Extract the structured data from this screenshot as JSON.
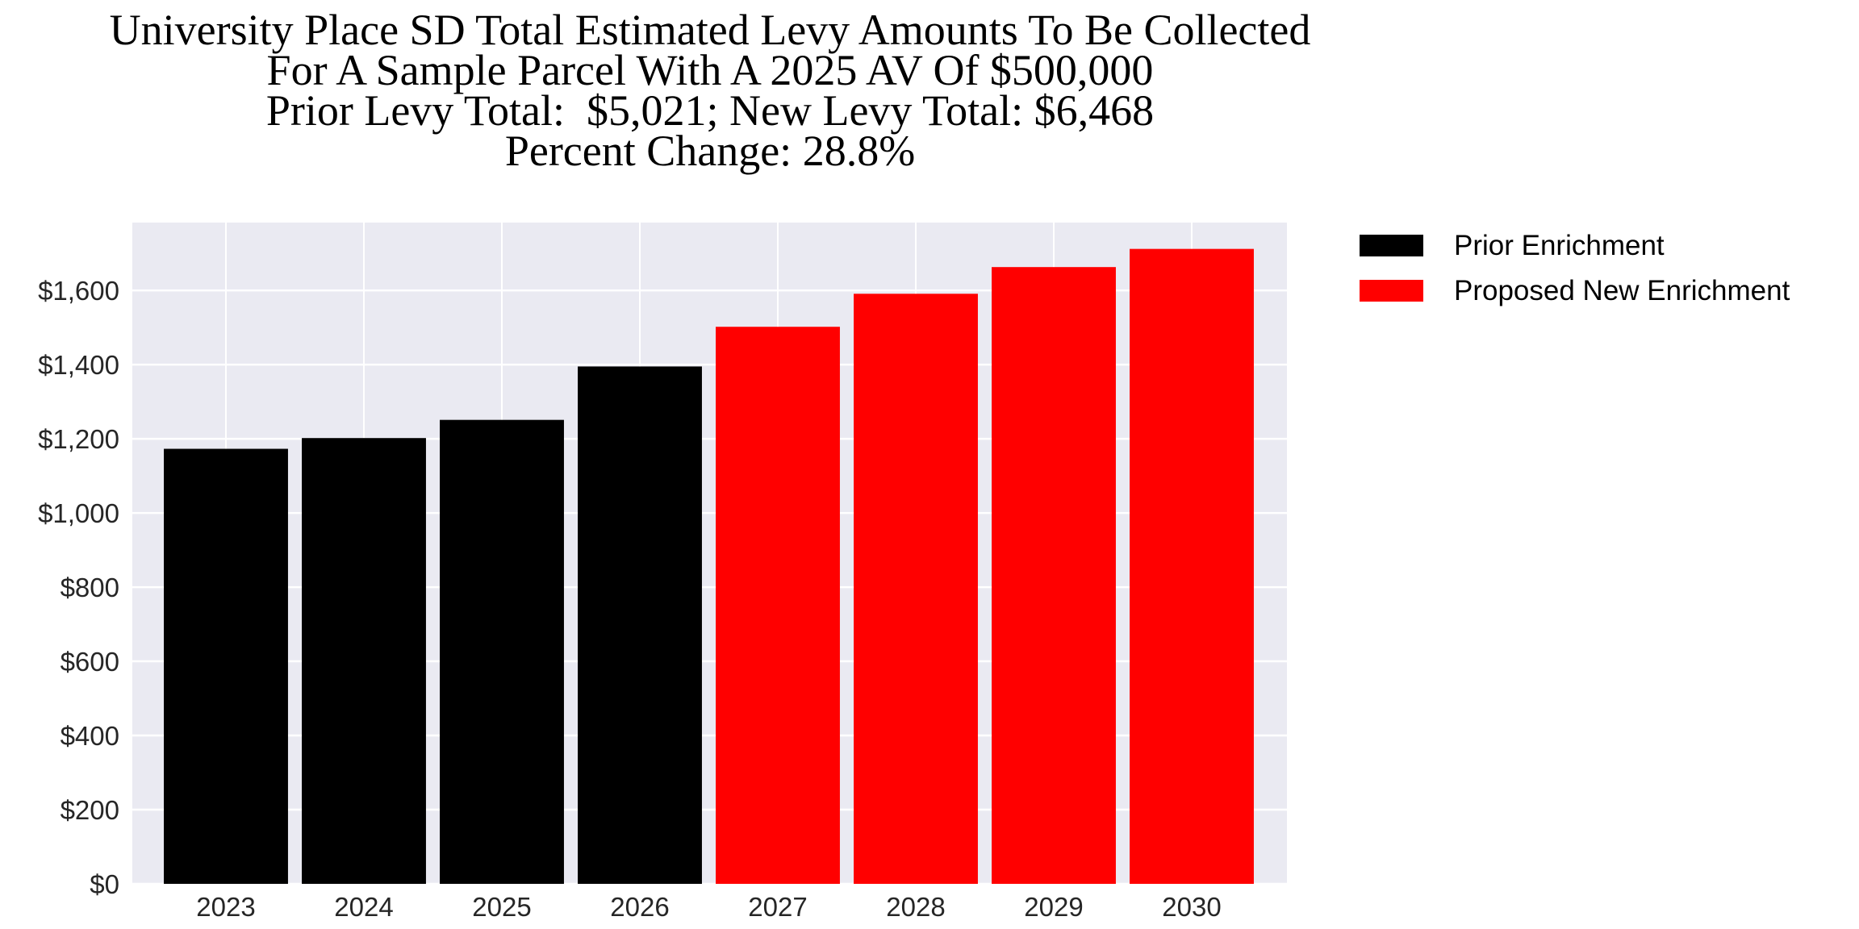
{
  "chart_data": {
    "type": "bar",
    "title_lines": [
      "University Place SD Total Estimated Levy Amounts To Be Collected",
      "For A Sample Parcel With A 2025 AV Of $500,000",
      "Prior Levy Total:  $5,021; New Levy Total: $6,468",
      "Percent Change: 28.8%"
    ],
    "categories": [
      "2023",
      "2024",
      "2025",
      "2026",
      "2027",
      "2028",
      "2029",
      "2030"
    ],
    "values": [
      1173,
      1202,
      1251,
      1395,
      1502,
      1591,
      1663,
      1712
    ],
    "bar_series": [
      "Prior Enrichment",
      "Prior Enrichment",
      "Prior Enrichment",
      "Prior Enrichment",
      "Proposed New Enrichment",
      "Proposed New Enrichment",
      "Proposed New Enrichment",
      "Proposed New Enrichment"
    ],
    "legend": [
      {
        "name": "Prior Enrichment",
        "color": "#000000"
      },
      {
        "name": "Proposed New Enrichment",
        "color": "#ff0000"
      }
    ],
    "legend_placement": "outside-top-right",
    "yticks": [
      0,
      200,
      400,
      600,
      800,
      1000,
      1200,
      1400,
      1600
    ],
    "ytick_labels": [
      "$0",
      "$200",
      "$400",
      "$600",
      "$800",
      "$1,000",
      "$1,200",
      "$1,400",
      "$1,600"
    ],
    "ylim": [
      0,
      1783
    ],
    "xlabel": "",
    "ylabel": "",
    "grid": true,
    "background_color": "#eaeaf2"
  }
}
